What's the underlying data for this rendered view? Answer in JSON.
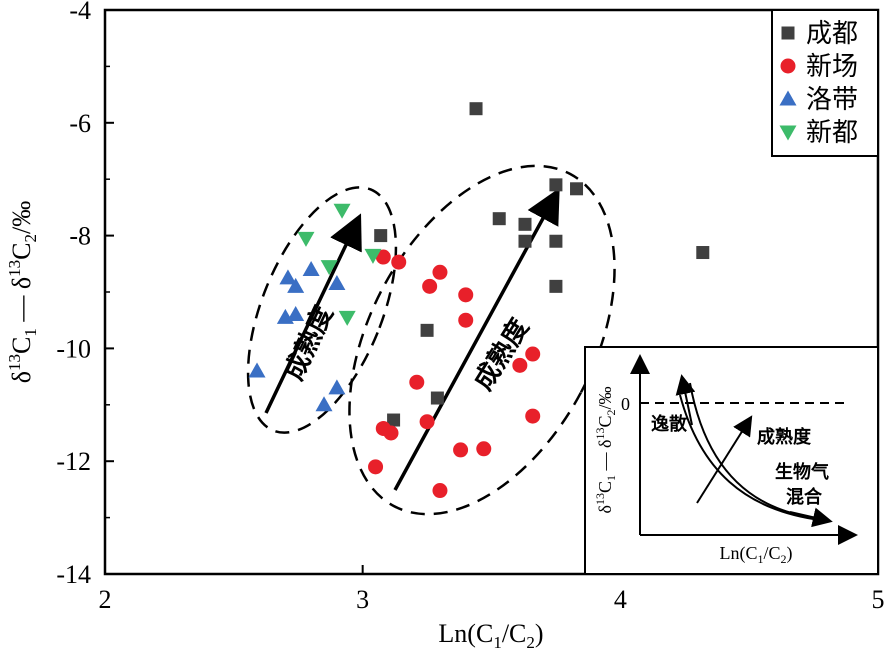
{
  "chart_data": {
    "type": "scatter",
    "xlabel": "Ln(C1/C2)",
    "ylabel": "δ13C1 − δ13C2/‰",
    "xlim": [
      2,
      5
    ],
    "ylim": [
      -14,
      -4
    ],
    "xticks": [
      "2",
      "3",
      "4",
      "5"
    ],
    "yticks": [
      "-4",
      "-6",
      "-8",
      "-10",
      "-12",
      "-14"
    ],
    "legend_placement": "top-right",
    "series": [
      {
        "name": "成都",
        "marker": "square",
        "color": "#404040",
        "points": [
          [
            3.44,
            -5.75
          ],
          [
            3.75,
            -7.1
          ],
          [
            3.83,
            -7.17
          ],
          [
            3.07,
            -8.0
          ],
          [
            3.53,
            -7.7
          ],
          [
            3.63,
            -7.8
          ],
          [
            3.63,
            -8.1
          ],
          [
            3.75,
            -8.1
          ],
          [
            4.32,
            -8.3
          ],
          [
            3.75,
            -8.9
          ],
          [
            3.25,
            -9.68
          ],
          [
            3.29,
            -10.88
          ],
          [
            3.12,
            -11.27
          ]
        ]
      },
      {
        "name": "新场",
        "marker": "circle",
        "color": "#e8202a",
        "points": [
          [
            3.08,
            -8.38
          ],
          [
            3.14,
            -8.47
          ],
          [
            3.3,
            -8.65
          ],
          [
            3.26,
            -8.9
          ],
          [
            3.4,
            -9.05
          ],
          [
            3.4,
            -9.5
          ],
          [
            3.21,
            -10.6
          ],
          [
            3.61,
            -10.3
          ],
          [
            3.66,
            -10.1
          ],
          [
            3.66,
            -11.2
          ],
          [
            3.08,
            -11.42
          ],
          [
            3.11,
            -11.5
          ],
          [
            3.25,
            -11.3
          ],
          [
            3.38,
            -11.8
          ],
          [
            3.47,
            -11.78
          ],
          [
            3.05,
            -12.1
          ],
          [
            3.3,
            -12.52
          ]
        ]
      },
      {
        "name": "洛带",
        "marker": "triangle-up",
        "color": "#3a6fc4",
        "points": [
          [
            2.59,
            -10.4
          ],
          [
            2.71,
            -8.75
          ],
          [
            2.74,
            -8.9
          ],
          [
            2.8,
            -8.6
          ],
          [
            2.9,
            -8.85
          ],
          [
            2.7,
            -9.45
          ],
          [
            2.74,
            -9.4
          ],
          [
            2.9,
            -10.7
          ],
          [
            2.85,
            -11.0
          ]
        ]
      },
      {
        "name": "新都",
        "marker": "triangle-down",
        "color": "#3dbb6a",
        "points": [
          [
            2.92,
            -7.55
          ],
          [
            2.78,
            -8.05
          ],
          [
            2.87,
            -8.55
          ],
          [
            3.04,
            -8.35
          ],
          [
            2.94,
            -9.45
          ]
        ]
      }
    ],
    "annotations": [
      "成熟度",
      "成熟度"
    ],
    "inset": {
      "ylabel": "δ13C1 − δ13C2/‰",
      "xlabel": "Ln(C1/C2)",
      "zero_label": "0",
      "labels": [
        "逸散",
        "成熟度",
        "生物气",
        "混合"
      ]
    }
  }
}
